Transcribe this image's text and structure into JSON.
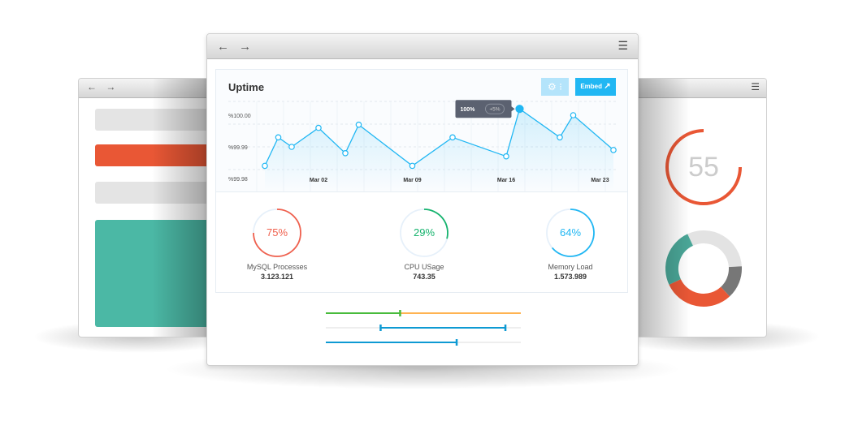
{
  "main_window": {
    "nav": "← →",
    "menu_icon": "☰"
  },
  "left_window": {
    "nav": "← →",
    "colors": {
      "bar_gray": "#e4e4e4",
      "bar_orange": "#e95735",
      "panel_teal": "#4bb8a5"
    }
  },
  "right_window": {
    "menu_icon": "☰",
    "gauge_value": "55",
    "gauge_color": "#e95735",
    "donut": [
      {
        "value": 31,
        "color": "#e3e3e3"
      },
      {
        "value": 14,
        "color": "#777777"
      },
      {
        "value": 30,
        "color": "#e95735"
      },
      {
        "value": 25,
        "color": "#4aa697"
      }
    ]
  },
  "uptime": {
    "title": "Uptime",
    "settings_icon": "gear-icon",
    "embed_label": "Embed",
    "embed_icon": "external-link-icon",
    "tooltip": {
      "value": "100%",
      "change": "+5%"
    }
  },
  "chart_data": {
    "type": "line",
    "title": "Uptime",
    "yticks": [
      "%100.00",
      "%99.99",
      "%99.98"
    ],
    "ytick_values": [
      100.0,
      99.99,
      99.98
    ],
    "xticks": [
      "Mar 02",
      "Mar 09",
      "Mar 16",
      "Mar 23"
    ],
    "x": [
      "Feb 26",
      "Feb 27",
      "Feb 28",
      "Mar 02",
      "Mar 04",
      "Mar 05",
      "Mar 09",
      "Mar 12",
      "Mar 16",
      "Mar 17",
      "Mar 20",
      "Mar 21",
      "Mar 24"
    ],
    "values": [
      99.984,
      99.993,
      99.99,
      99.996,
      99.988,
      99.997,
      99.984,
      99.993,
      99.987,
      100.002,
      99.993,
      100.0,
      99.989
    ],
    "highlight_index": 9,
    "grid": true,
    "color": "#21b7f3"
  },
  "gauges": [
    {
      "value": 75,
      "label": "75%",
      "name": "MySQL Processes",
      "stat": "3.123.121",
      "color": "#f0604d"
    },
    {
      "value": 29,
      "label": "29%",
      "name": "CPU USage",
      "stat": "743.35",
      "color": "#15b36d"
    },
    {
      "value": 64,
      "label": "64%",
      "name": "Memory Load",
      "stat": "1.573.989",
      "color": "#21b7f3"
    }
  ],
  "sliders": [
    {
      "type": "single",
      "value": 38,
      "fill": "#48bb3c",
      "track": "#ffb352"
    },
    {
      "type": "range",
      "low": 28,
      "high": 92,
      "fill": "#0e9ad3",
      "track": "#eeeeee"
    },
    {
      "type": "single",
      "value": 67,
      "fill": "#0e9ad3",
      "track": "#eeeeee"
    }
  ]
}
